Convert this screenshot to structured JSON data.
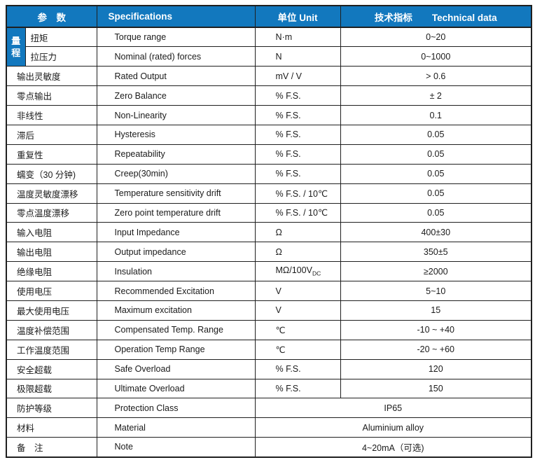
{
  "colors": {
    "header_blue": "#1278be",
    "border": "#1f1f1f",
    "header_text": "#ffffff",
    "body_text": "#1a1a1a"
  },
  "table": {
    "header": {
      "param": "参　数",
      "spec": "Specifications",
      "unit": "单位 Unit",
      "tech_zh": "技术指标",
      "tech_en": "Technical data"
    },
    "group": {
      "label": "量程",
      "chars": [
        "量",
        "程"
      ]
    },
    "rows": [
      {
        "cn": "扭矩",
        "spec": "Torque range",
        "unit": "N·m",
        "value": "0~20",
        "in_group": true
      },
      {
        "cn": "拉压力",
        "spec": "Nominal (rated) forces",
        "unit": "N",
        "value": "0~1000",
        "in_group": true
      },
      {
        "cn": "输出灵敏度",
        "spec": "Rated Output",
        "unit": "mV / V",
        "value": "> 0.6"
      },
      {
        "cn": "零点输出",
        "spec": "Zero Balance",
        "unit": "% F.S.",
        "value": "± 2"
      },
      {
        "cn": "非线性",
        "spec": "Non-Linearity",
        "unit": "% F.S.",
        "value": "0.1"
      },
      {
        "cn": "滞后",
        "spec": "Hysteresis",
        "unit": "% F.S.",
        "value": "0.05"
      },
      {
        "cn": "重复性",
        "spec": "Repeatability",
        "unit": "% F.S.",
        "value": "0.05"
      },
      {
        "cn": "蠕变（30 分钟)",
        "spec": "Creep(30min)",
        "unit": "% F.S.",
        "value": "0.05"
      },
      {
        "cn": "温度灵敏度漂移",
        "spec": "Temperature sensitivity drift",
        "unit": "% F.S. / 10℃",
        "value": "0.05"
      },
      {
        "cn": "零点温度漂移",
        "spec": "Zero point temperature drift",
        "unit": "% F.S. / 10℃",
        "value": "0.05"
      },
      {
        "cn": "输入电阻",
        "spec": "Input Impedance",
        "unit": "Ω",
        "value": "400±30"
      },
      {
        "cn": "输出电阻",
        "spec": "Output impedance",
        "unit": "Ω",
        "value": "350±5"
      },
      {
        "cn": "绝缘电阻",
        "spec": "Insulation",
        "unit": "MΩ/100V",
        "unit_sub": "DC",
        "value": "≥2000"
      },
      {
        "cn": "使用电压",
        "spec": "Recommended Excitation",
        "unit": "V",
        "value": "5~10"
      },
      {
        "cn": "最大使用电压",
        "spec": "Maximum excitation",
        "unit": "V",
        "value": "15"
      },
      {
        "cn": "温度补偿范围",
        "spec": "Compensated Temp. Range",
        "unit": "℃",
        "value": "-10 ~ +40"
      },
      {
        "cn": "工作温度范围",
        "spec": "Operation Temp Range",
        "unit": "℃",
        "value": "-20 ~ +60"
      },
      {
        "cn": "安全超载",
        "spec": "Safe Overload",
        "unit": "% F.S.",
        "value": "120"
      },
      {
        "cn": "极限超载",
        "spec": "Ultimate Overload",
        "unit": "% F.S.",
        "value": "150"
      },
      {
        "cn": "防护等级",
        "spec": "Protection Class",
        "merged_value": "IP65"
      },
      {
        "cn": "材料",
        "spec": "Material",
        "merged_value": "Aluminium alloy"
      },
      {
        "cn": "备　注",
        "spec": "Note",
        "merged_value": "4~20mA（可选)"
      }
    ]
  }
}
